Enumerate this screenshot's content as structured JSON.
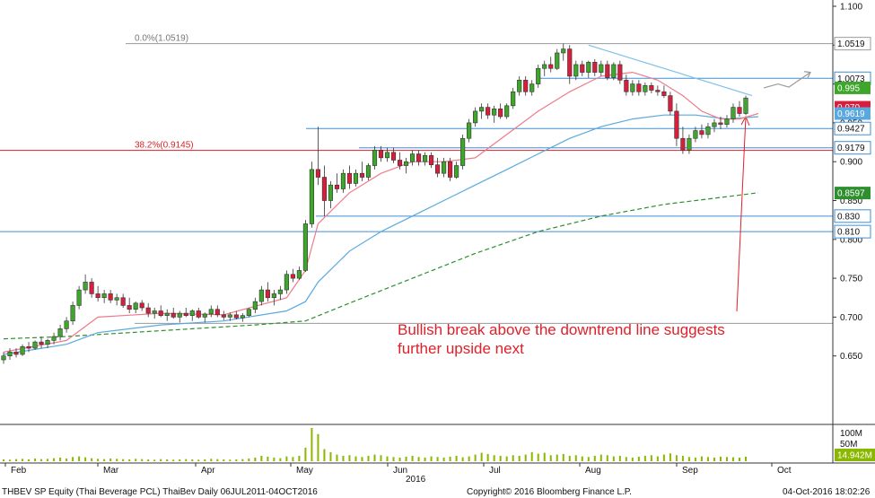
{
  "chart_data": {
    "type": "candlestick",
    "colors": {
      "up_candle": "#3fa62c",
      "down_candle": "#d81e3c",
      "ma_fast": "#ee7b8a",
      "ma_mid": "#5aa8de",
      "ma_slow": "#2e8f2e",
      "h_line": "#3f8fd6",
      "fib_line": "#d8232a",
      "annotation": "#e0202a",
      "volume": "#8ab800"
    },
    "y_axis": {
      "min": 0.6,
      "max": 1.1,
      "ticks": [
        "1.100",
        "1.050",
        "1.000",
        "0.950",
        "0.900",
        "0.850",
        "0.800",
        "0.750",
        "0.700",
        "0.650"
      ]
    },
    "x_axis": {
      "months": [
        "Feb",
        "Mar",
        "Apr",
        "May",
        "Jun",
        "Jul",
        "Aug",
        "Sep",
        "Oct"
      ],
      "year_label": "2016"
    },
    "candles": [
      {
        "o": 0.645,
        "h": 0.655,
        "l": 0.64,
        "c": 0.65
      },
      {
        "o": 0.65,
        "h": 0.66,
        "l": 0.645,
        "c": 0.655
      },
      {
        "o": 0.655,
        "h": 0.66,
        "l": 0.648,
        "c": 0.652
      },
      {
        "o": 0.652,
        "h": 0.665,
        "l": 0.65,
        "c": 0.662
      },
      {
        "o": 0.662,
        "h": 0.668,
        "l": 0.655,
        "c": 0.66
      },
      {
        "o": 0.66,
        "h": 0.67,
        "l": 0.658,
        "c": 0.668
      },
      {
        "o": 0.668,
        "h": 0.675,
        "l": 0.66,
        "c": 0.665
      },
      {
        "o": 0.665,
        "h": 0.672,
        "l": 0.66,
        "c": 0.67
      },
      {
        "o": 0.67,
        "h": 0.68,
        "l": 0.665,
        "c": 0.675
      },
      {
        "o": 0.675,
        "h": 0.69,
        "l": 0.67,
        "c": 0.685
      },
      {
        "o": 0.685,
        "h": 0.7,
        "l": 0.68,
        "c": 0.695
      },
      {
        "o": 0.695,
        "h": 0.72,
        "l": 0.69,
        "c": 0.715
      },
      {
        "o": 0.715,
        "h": 0.74,
        "l": 0.71,
        "c": 0.735
      },
      {
        "o": 0.735,
        "h": 0.755,
        "l": 0.73,
        "c": 0.745
      },
      {
        "o": 0.745,
        "h": 0.75,
        "l": 0.725,
        "c": 0.73
      },
      {
        "o": 0.73,
        "h": 0.74,
        "l": 0.72,
        "c": 0.725
      },
      {
        "o": 0.725,
        "h": 0.735,
        "l": 0.718,
        "c": 0.73
      },
      {
        "o": 0.73,
        "h": 0.735,
        "l": 0.718,
        "c": 0.722
      },
      {
        "o": 0.722,
        "h": 0.73,
        "l": 0.715,
        "c": 0.725
      },
      {
        "o": 0.725,
        "h": 0.73,
        "l": 0.712,
        "c": 0.715
      },
      {
        "o": 0.715,
        "h": 0.725,
        "l": 0.705,
        "c": 0.71
      },
      {
        "o": 0.71,
        "h": 0.72,
        "l": 0.705,
        "c": 0.718
      },
      {
        "o": 0.718,
        "h": 0.722,
        "l": 0.708,
        "c": 0.712
      },
      {
        "o": 0.712,
        "h": 0.718,
        "l": 0.7,
        "c": 0.705
      },
      {
        "o": 0.705,
        "h": 0.712,
        "l": 0.698,
        "c": 0.708
      },
      {
        "o": 0.708,
        "h": 0.715,
        "l": 0.7,
        "c": 0.702
      },
      {
        "o": 0.702,
        "h": 0.71,
        "l": 0.695,
        "c": 0.705
      },
      {
        "o": 0.705,
        "h": 0.712,
        "l": 0.698,
        "c": 0.7
      },
      {
        "o": 0.7,
        "h": 0.708,
        "l": 0.693,
        "c": 0.705
      },
      {
        "o": 0.705,
        "h": 0.712,
        "l": 0.7,
        "c": 0.702
      },
      {
        "o": 0.702,
        "h": 0.71,
        "l": 0.695,
        "c": 0.708
      },
      {
        "o": 0.708,
        "h": 0.712,
        "l": 0.698,
        "c": 0.7
      },
      {
        "o": 0.7,
        "h": 0.706,
        "l": 0.693,
        "c": 0.704
      },
      {
        "o": 0.704,
        "h": 0.715,
        "l": 0.7,
        "c": 0.71
      },
      {
        "o": 0.71,
        "h": 0.715,
        "l": 0.7,
        "c": 0.703
      },
      {
        "o": 0.703,
        "h": 0.708,
        "l": 0.696,
        "c": 0.7
      },
      {
        "o": 0.7,
        "h": 0.706,
        "l": 0.695,
        "c": 0.703
      },
      {
        "o": 0.703,
        "h": 0.708,
        "l": 0.697,
        "c": 0.699
      },
      {
        "o": 0.699,
        "h": 0.705,
        "l": 0.694,
        "c": 0.702
      },
      {
        "o": 0.702,
        "h": 0.712,
        "l": 0.7,
        "c": 0.71
      },
      {
        "o": 0.71,
        "h": 0.725,
        "l": 0.705,
        "c": 0.72
      },
      {
        "o": 0.72,
        "h": 0.74,
        "l": 0.715,
        "c": 0.735
      },
      {
        "o": 0.735,
        "h": 0.745,
        "l": 0.72,
        "c": 0.725
      },
      {
        "o": 0.725,
        "h": 0.735,
        "l": 0.715,
        "c": 0.73
      },
      {
        "o": 0.73,
        "h": 0.74,
        "l": 0.722,
        "c": 0.735
      },
      {
        "o": 0.735,
        "h": 0.76,
        "l": 0.73,
        "c": 0.755
      },
      {
        "o": 0.755,
        "h": 0.762,
        "l": 0.745,
        "c": 0.75
      },
      {
        "o": 0.75,
        "h": 0.765,
        "l": 0.748,
        "c": 0.76
      },
      {
        "o": 0.76,
        "h": 0.825,
        "l": 0.758,
        "c": 0.82
      },
      {
        "o": 0.82,
        "h": 0.9,
        "l": 0.815,
        "c": 0.89
      },
      {
        "o": 0.89,
        "h": 0.945,
        "l": 0.87,
        "c": 0.88
      },
      {
        "o": 0.88,
        "h": 0.895,
        "l": 0.83,
        "c": 0.85
      },
      {
        "o": 0.85,
        "h": 0.875,
        "l": 0.84,
        "c": 0.87
      },
      {
        "o": 0.87,
        "h": 0.885,
        "l": 0.86,
        "c": 0.865
      },
      {
        "o": 0.865,
        "h": 0.89,
        "l": 0.86,
        "c": 0.885
      },
      {
        "o": 0.885,
        "h": 0.895,
        "l": 0.865,
        "c": 0.872
      },
      {
        "o": 0.872,
        "h": 0.89,
        "l": 0.868,
        "c": 0.885
      },
      {
        "o": 0.885,
        "h": 0.9,
        "l": 0.875,
        "c": 0.88
      },
      {
        "o": 0.88,
        "h": 0.898,
        "l": 0.876,
        "c": 0.895
      },
      {
        "o": 0.895,
        "h": 0.92,
        "l": 0.89,
        "c": 0.915
      },
      {
        "o": 0.915,
        "h": 0.92,
        "l": 0.9,
        "c": 0.905
      },
      {
        "o": 0.905,
        "h": 0.918,
        "l": 0.9,
        "c": 0.912
      },
      {
        "o": 0.912,
        "h": 0.918,
        "l": 0.898,
        "c": 0.902
      },
      {
        "o": 0.902,
        "h": 0.912,
        "l": 0.89,
        "c": 0.895
      },
      {
        "o": 0.895,
        "h": 0.905,
        "l": 0.885,
        "c": 0.9
      },
      {
        "o": 0.9,
        "h": 0.915,
        "l": 0.895,
        "c": 0.91
      },
      {
        "o": 0.91,
        "h": 0.915,
        "l": 0.895,
        "c": 0.9
      },
      {
        "o": 0.9,
        "h": 0.912,
        "l": 0.895,
        "c": 0.908
      },
      {
        "o": 0.908,
        "h": 0.912,
        "l": 0.892,
        "c": 0.896
      },
      {
        "o": 0.896,
        "h": 0.905,
        "l": 0.88,
        "c": 0.885
      },
      {
        "o": 0.885,
        "h": 0.905,
        "l": 0.88,
        "c": 0.9
      },
      {
        "o": 0.9,
        "h": 0.905,
        "l": 0.875,
        "c": 0.88
      },
      {
        "o": 0.88,
        "h": 0.9,
        "l": 0.878,
        "c": 0.895
      },
      {
        "o": 0.895,
        "h": 0.935,
        "l": 0.89,
        "c": 0.93
      },
      {
        "o": 0.93,
        "h": 0.955,
        "l": 0.925,
        "c": 0.95
      },
      {
        "o": 0.95,
        "h": 0.97,
        "l": 0.945,
        "c": 0.965
      },
      {
        "o": 0.965,
        "h": 0.975,
        "l": 0.955,
        "c": 0.97
      },
      {
        "o": 0.97,
        "h": 0.975,
        "l": 0.955,
        "c": 0.96
      },
      {
        "o": 0.96,
        "h": 0.972,
        "l": 0.95,
        "c": 0.968
      },
      {
        "o": 0.968,
        "h": 0.975,
        "l": 0.955,
        "c": 0.958
      },
      {
        "o": 0.958,
        "h": 0.975,
        "l": 0.955,
        "c": 0.972
      },
      {
        "o": 0.972,
        "h": 0.995,
        "l": 0.968,
        "c": 0.99
      },
      {
        "o": 0.99,
        "h": 1.01,
        "l": 0.985,
        "c": 1.005
      },
      {
        "o": 1.005,
        "h": 1.01,
        "l": 0.985,
        "c": 0.99
      },
      {
        "o": 0.99,
        "h": 1.005,
        "l": 0.985,
        "c": 1.0
      },
      {
        "o": 1.0,
        "h": 1.025,
        "l": 0.995,
        "c": 1.02
      },
      {
        "o": 1.02,
        "h": 1.03,
        "l": 1.01,
        "c": 1.025
      },
      {
        "o": 1.025,
        "h": 1.035,
        "l": 1.015,
        "c": 1.02
      },
      {
        "o": 1.02,
        "h": 1.045,
        "l": 1.018,
        "c": 1.04
      },
      {
        "o": 1.04,
        "h": 1.052,
        "l": 1.03,
        "c": 1.045
      },
      {
        "o": 1.045,
        "h": 1.05,
        "l": 1.0,
        "c": 1.01
      },
      {
        "o": 1.01,
        "h": 1.03,
        "l": 1.005,
        "c": 1.025
      },
      {
        "o": 1.025,
        "h": 1.03,
        "l": 1.01,
        "c": 1.015
      },
      {
        "o": 1.015,
        "h": 1.03,
        "l": 1.008,
        "c": 1.028
      },
      {
        "o": 1.028,
        "h": 1.032,
        "l": 1.01,
        "c": 1.015
      },
      {
        "o": 1.015,
        "h": 1.03,
        "l": 1.01,
        "c": 1.025
      },
      {
        "o": 1.025,
        "h": 1.03,
        "l": 1.005,
        "c": 1.008
      },
      {
        "o": 1.008,
        "h": 1.028,
        "l": 1.005,
        "c": 1.025
      },
      {
        "o": 1.025,
        "h": 1.03,
        "l": 1.0,
        "c": 1.005
      },
      {
        "o": 1.005,
        "h": 1.012,
        "l": 0.985,
        "c": 0.99
      },
      {
        "o": 0.99,
        "h": 1.005,
        "l": 0.985,
        "c": 1.0
      },
      {
        "o": 1.0,
        "h": 1.005,
        "l": 0.985,
        "c": 0.99
      },
      {
        "o": 0.99,
        "h": 1.002,
        "l": 0.985,
        "c": 0.998
      },
      {
        "o": 0.998,
        "h": 1.002,
        "l": 0.988,
        "c": 0.992
      },
      {
        "o": 0.992,
        "h": 0.998,
        "l": 0.985,
        "c": 0.99
      },
      {
        "o": 0.99,
        "h": 0.998,
        "l": 0.982,
        "c": 0.985
      },
      {
        "o": 0.985,
        "h": 0.99,
        "l": 0.96,
        "c": 0.965
      },
      {
        "o": 0.965,
        "h": 0.975,
        "l": 0.92,
        "c": 0.93
      },
      {
        "o": 0.93,
        "h": 0.945,
        "l": 0.91,
        "c": 0.915
      },
      {
        "o": 0.915,
        "h": 0.935,
        "l": 0.91,
        "c": 0.93
      },
      {
        "o": 0.93,
        "h": 0.945,
        "l": 0.925,
        "c": 0.94
      },
      {
        "o": 0.94,
        "h": 0.948,
        "l": 0.93,
        "c": 0.935
      },
      {
        "o": 0.935,
        "h": 0.95,
        "l": 0.93,
        "c": 0.945
      },
      {
        "o": 0.945,
        "h": 0.955,
        "l": 0.938,
        "c": 0.95
      },
      {
        "o": 0.95,
        "h": 0.958,
        "l": 0.942,
        "c": 0.948
      },
      {
        "o": 0.948,
        "h": 0.96,
        "l": 0.944,
        "c": 0.955
      },
      {
        "o": 0.955,
        "h": 0.975,
        "l": 0.95,
        "c": 0.97
      },
      {
        "o": 0.97,
        "h": 0.978,
        "l": 0.958,
        "c": 0.962
      },
      {
        "o": 0.962,
        "h": 0.985,
        "l": 0.96,
        "c": 0.982
      }
    ],
    "ma_fast": [
      [
        0,
        0.655
      ],
      [
        10,
        0.67
      ],
      [
        15,
        0.7
      ],
      [
        25,
        0.705
      ],
      [
        35,
        0.703
      ],
      [
        45,
        0.725
      ],
      [
        48,
        0.76
      ],
      [
        50,
        0.82
      ],
      [
        55,
        0.86
      ],
      [
        60,
        0.885
      ],
      [
        65,
        0.9
      ],
      [
        70,
        0.9
      ],
      [
        75,
        0.905
      ],
      [
        80,
        0.935
      ],
      [
        85,
        0.965
      ],
      [
        90,
        0.99
      ],
      [
        95,
        1.01
      ],
      [
        100,
        1.015
      ],
      [
        104,
        1.005
      ],
      [
        108,
        0.985
      ],
      [
        111,
        0.965
      ],
      [
        114,
        0.955
      ],
      [
        117,
        0.955
      ],
      [
        120,
        0.962
      ]
    ],
    "ma_mid": [
      [
        0,
        0.652
      ],
      [
        10,
        0.665
      ],
      [
        15,
        0.68
      ],
      [
        25,
        0.69
      ],
      [
        35,
        0.695
      ],
      [
        45,
        0.708
      ],
      [
        48,
        0.72
      ],
      [
        50,
        0.745
      ],
      [
        55,
        0.785
      ],
      [
        60,
        0.81
      ],
      [
        65,
        0.83
      ],
      [
        70,
        0.85
      ],
      [
        75,
        0.87
      ],
      [
        80,
        0.89
      ],
      [
        85,
        0.91
      ],
      [
        90,
        0.93
      ],
      [
        95,
        0.945
      ],
      [
        100,
        0.955
      ],
      [
        105,
        0.96
      ],
      [
        110,
        0.96
      ],
      [
        115,
        0.955
      ],
      [
        120,
        0.958
      ]
    ],
    "ma_slow": [
      [
        0,
        0.672
      ],
      [
        10,
        0.675
      ],
      [
        20,
        0.68
      ],
      [
        30,
        0.685
      ],
      [
        40,
        0.69
      ],
      [
        48,
        0.695
      ],
      [
        55,
        0.718
      ],
      [
        65,
        0.75
      ],
      [
        75,
        0.782
      ],
      [
        85,
        0.81
      ],
      [
        95,
        0.83
      ],
      [
        105,
        0.845
      ],
      [
        112,
        0.852
      ],
      [
        120,
        0.86
      ]
    ],
    "h_lines": [
      {
        "value": 1.0519,
        "label": "1.0519",
        "color": "#9a9a9a"
      },
      {
        "value": 1.0073,
        "label": "1.0073",
        "color": "#3f8fd6"
      },
      {
        "value": 0.9427,
        "label": "0.9427",
        "color": "#3f8fd6"
      },
      {
        "value": 0.9179,
        "label": "0.9179",
        "color": "#3f8fd6"
      },
      {
        "value": 0.9145,
        "label": "",
        "color": "#d8232a"
      },
      {
        "value": 0.83,
        "label": "0.830",
        "color": "#3f8fd6"
      },
      {
        "value": 0.81,
        "label": "0.810",
        "color": "#3f8fd6"
      },
      {
        "value": 0.692,
        "label": "",
        "color": "#9a9a9a"
      }
    ],
    "fib_labels": [
      {
        "text": "0.0%(1.0519)",
        "value": 1.0519,
        "color": "#777777"
      },
      {
        "text": "38.2%(0.9145)",
        "value": 0.9145,
        "color": "#d8232a"
      }
    ],
    "price_boxes": [
      {
        "label": "0.995",
        "value": 0.995,
        "bg": "#3fa62c",
        "fg": "#ffffff"
      },
      {
        "label": "0.970",
        "value": 0.97,
        "bg": "#d81e3c",
        "fg": "#ffffff"
      },
      {
        "label": "0.9619",
        "value": 0.962,
        "bg": "#5aa8de",
        "fg": "#ffffff"
      },
      {
        "label": "0.8597",
        "value": 0.8597,
        "bg": "#2e8f2e",
        "fg": "#ffffff"
      }
    ],
    "volume": {
      "ticks": [
        "100M",
        "50M"
      ],
      "current": "14.942M",
      "values": [
        6,
        5,
        7,
        8,
        6,
        9,
        7,
        8,
        10,
        12,
        9,
        14,
        16,
        13,
        10,
        8,
        7,
        9,
        8,
        7,
        6,
        8,
        7,
        6,
        5,
        7,
        6,
        5,
        6,
        7,
        6,
        5,
        6,
        8,
        7,
        6,
        5,
        6,
        7,
        9,
        12,
        18,
        15,
        12,
        10,
        16,
        14,
        18,
        45,
        110,
        90,
        40,
        30,
        22,
        18,
        20,
        16,
        14,
        18,
        22,
        20,
        16,
        14,
        12,
        15,
        18,
        14,
        12,
        16,
        14,
        12,
        15,
        18,
        13,
        16,
        22,
        28,
        24,
        20,
        18,
        16,
        20,
        18,
        22,
        30,
        25,
        28,
        20,
        22,
        24,
        18,
        20,
        16,
        14,
        18,
        22,
        20,
        16,
        18,
        14,
        12,
        15,
        18,
        20,
        16,
        22,
        26,
        20,
        18,
        14,
        12,
        16,
        14,
        12,
        15,
        14,
        13,
        12,
        15
      ]
    },
    "annotation": "Bullish break above the downtrend line suggests further upside next"
  },
  "footer": {
    "left": "THBEV SP Equity (Thai Beverage PCL) ThaiBev  Daily 06JUL2011-04OCT2016",
    "center": "Copyright© 2016 Bloomberg Finance L.P.",
    "right": "04-Oct-2016 18:02:26"
  }
}
